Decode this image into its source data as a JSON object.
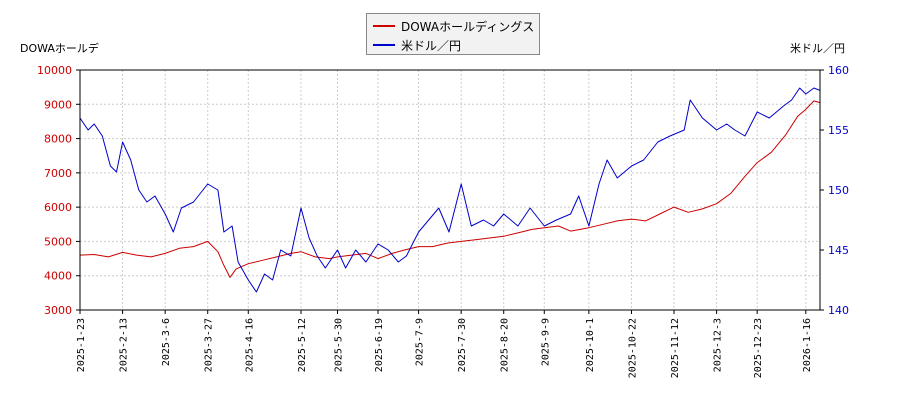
{
  "chart_data": {
    "type": "line",
    "left_axis_label": "DOWAホールデ",
    "right_axis_label": "米ドル／円",
    "left_ylim": [
      3000,
      10000
    ],
    "left_yticks": [
      3000,
      4000,
      5000,
      6000,
      7000,
      8000,
      9000,
      10000
    ],
    "right_ylim": [
      140,
      160
    ],
    "right_yticks": [
      140,
      145,
      150,
      155,
      160
    ],
    "xlim": [
      "2025-01-23",
      "2026-01-23"
    ],
    "xticks": [
      "2025-1-23",
      "2025-2-13",
      "2025-3-6",
      "2025-3-27",
      "2025-4-16",
      "2025-5-12",
      "2025-5-30",
      "2025-6-19",
      "2025-7-9",
      "2025-7-30",
      "2025-8-20",
      "2025-9-9",
      "2025-10-1",
      "2025-10-22",
      "2025-11-12",
      "2025-12-3",
      "2025-12-23",
      "2026-1-16"
    ],
    "grid": true,
    "legend_position": "top-center",
    "colors": {
      "stock": "#cc0000",
      "fx": "#0000cc",
      "left_tick": "#cc0000",
      "right_tick": "#0000cc"
    },
    "series": [
      {
        "name": "DOWAホールディングス",
        "axis": "left",
        "points": [
          [
            "2025-01-23",
            4600
          ],
          [
            "2025-01-30",
            4620
          ],
          [
            "2025-02-06",
            4550
          ],
          [
            "2025-02-13",
            4680
          ],
          [
            "2025-02-20",
            4600
          ],
          [
            "2025-02-27",
            4550
          ],
          [
            "2025-03-06",
            4650
          ],
          [
            "2025-03-13",
            4800
          ],
          [
            "2025-03-20",
            4850
          ],
          [
            "2025-03-27",
            5000
          ],
          [
            "2025-04-01",
            4700
          ],
          [
            "2025-04-04",
            4300
          ],
          [
            "2025-04-07",
            3950
          ],
          [
            "2025-04-10",
            4200
          ],
          [
            "2025-04-16",
            4350
          ],
          [
            "2025-04-23",
            4450
          ],
          [
            "2025-04-30",
            4550
          ],
          [
            "2025-05-07",
            4650
          ],
          [
            "2025-05-12",
            4700
          ],
          [
            "2025-05-19",
            4550
          ],
          [
            "2025-05-26",
            4500
          ],
          [
            "2025-05-30",
            4550
          ],
          [
            "2025-06-06",
            4600
          ],
          [
            "2025-06-13",
            4650
          ],
          [
            "2025-06-19",
            4500
          ],
          [
            "2025-06-26",
            4650
          ],
          [
            "2025-07-02",
            4750
          ],
          [
            "2025-07-09",
            4850
          ],
          [
            "2025-07-16",
            4850
          ],
          [
            "2025-07-23",
            4950
          ],
          [
            "2025-07-30",
            5000
          ],
          [
            "2025-08-06",
            5050
          ],
          [
            "2025-08-13",
            5100
          ],
          [
            "2025-08-20",
            5150
          ],
          [
            "2025-08-27",
            5250
          ],
          [
            "2025-09-03",
            5350
          ],
          [
            "2025-09-09",
            5400
          ],
          [
            "2025-09-16",
            5450
          ],
          [
            "2025-09-22",
            5300
          ],
          [
            "2025-10-01",
            5400
          ],
          [
            "2025-10-08",
            5500
          ],
          [
            "2025-10-15",
            5600
          ],
          [
            "2025-10-22",
            5650
          ],
          [
            "2025-10-29",
            5600
          ],
          [
            "2025-11-05",
            5800
          ],
          [
            "2025-11-12",
            6000
          ],
          [
            "2025-11-19",
            5850
          ],
          [
            "2025-11-26",
            5950
          ],
          [
            "2025-12-03",
            6100
          ],
          [
            "2025-12-10",
            6400
          ],
          [
            "2025-12-17",
            6900
          ],
          [
            "2025-12-23",
            7300
          ],
          [
            "2025-12-30",
            7600
          ],
          [
            "2026-01-06",
            8100
          ],
          [
            "2026-01-12",
            8650
          ],
          [
            "2026-01-16",
            8850
          ],
          [
            "2026-01-20",
            9100
          ],
          [
            "2026-01-23",
            9050
          ]
        ]
      },
      {
        "name": "米ドル／円",
        "axis": "right",
        "points": [
          [
            "2025-01-23",
            156.0
          ],
          [
            "2025-01-27",
            155.0
          ],
          [
            "2025-01-30",
            155.5
          ],
          [
            "2025-02-03",
            154.5
          ],
          [
            "2025-02-07",
            152.0
          ],
          [
            "2025-02-10",
            151.5
          ],
          [
            "2025-02-13",
            154.0
          ],
          [
            "2025-02-17",
            152.5
          ],
          [
            "2025-02-21",
            150.0
          ],
          [
            "2025-02-25",
            149.0
          ],
          [
            "2025-03-01",
            149.5
          ],
          [
            "2025-03-06",
            148.0
          ],
          [
            "2025-03-10",
            146.5
          ],
          [
            "2025-03-14",
            148.5
          ],
          [
            "2025-03-20",
            149.0
          ],
          [
            "2025-03-27",
            150.5
          ],
          [
            "2025-04-01",
            150.0
          ],
          [
            "2025-04-04",
            146.5
          ],
          [
            "2025-04-08",
            147.0
          ],
          [
            "2025-04-11",
            144.0
          ],
          [
            "2025-04-16",
            142.5
          ],
          [
            "2025-04-20",
            141.5
          ],
          [
            "2025-04-24",
            143.0
          ],
          [
            "2025-04-28",
            142.5
          ],
          [
            "2025-05-02",
            145.0
          ],
          [
            "2025-05-07",
            144.5
          ],
          [
            "2025-05-12",
            148.5
          ],
          [
            "2025-05-16",
            146.0
          ],
          [
            "2025-05-20",
            144.5
          ],
          [
            "2025-05-24",
            143.5
          ],
          [
            "2025-05-30",
            145.0
          ],
          [
            "2025-06-03",
            143.5
          ],
          [
            "2025-06-08",
            145.0
          ],
          [
            "2025-06-13",
            144.0
          ],
          [
            "2025-06-19",
            145.5
          ],
          [
            "2025-06-24",
            145.0
          ],
          [
            "2025-06-29",
            144.0
          ],
          [
            "2025-07-03",
            144.5
          ],
          [
            "2025-07-09",
            146.5
          ],
          [
            "2025-07-14",
            147.5
          ],
          [
            "2025-07-19",
            148.5
          ],
          [
            "2025-07-24",
            146.5
          ],
          [
            "2025-07-30",
            150.5
          ],
          [
            "2025-08-04",
            147.0
          ],
          [
            "2025-08-10",
            147.5
          ],
          [
            "2025-08-15",
            147.0
          ],
          [
            "2025-08-20",
            148.0
          ],
          [
            "2025-08-27",
            147.0
          ],
          [
            "2025-09-02",
            148.5
          ],
          [
            "2025-09-09",
            147.0
          ],
          [
            "2025-09-15",
            147.5
          ],
          [
            "2025-09-22",
            148.0
          ],
          [
            "2025-09-26",
            149.5
          ],
          [
            "2025-10-01",
            147.0
          ],
          [
            "2025-10-06",
            150.5
          ],
          [
            "2025-10-10",
            152.5
          ],
          [
            "2025-10-15",
            151.0
          ],
          [
            "2025-10-22",
            152.0
          ],
          [
            "2025-10-28",
            152.5
          ],
          [
            "2025-11-04",
            154.0
          ],
          [
            "2025-11-10",
            154.5
          ],
          [
            "2025-11-17",
            155.0
          ],
          [
            "2025-11-20",
            157.5
          ],
          [
            "2025-11-26",
            156.0
          ],
          [
            "2025-12-03",
            155.0
          ],
          [
            "2025-12-08",
            155.5
          ],
          [
            "2025-12-12",
            155.0
          ],
          [
            "2025-12-17",
            154.5
          ],
          [
            "2025-12-23",
            156.5
          ],
          [
            "2025-12-29",
            156.0
          ],
          [
            "2026-01-05",
            157.0
          ],
          [
            "2026-01-09",
            157.5
          ],
          [
            "2026-01-13",
            158.5
          ],
          [
            "2026-01-16",
            158.0
          ],
          [
            "2026-01-20",
            158.5
          ],
          [
            "2026-01-23",
            158.3
          ]
        ]
      }
    ]
  }
}
